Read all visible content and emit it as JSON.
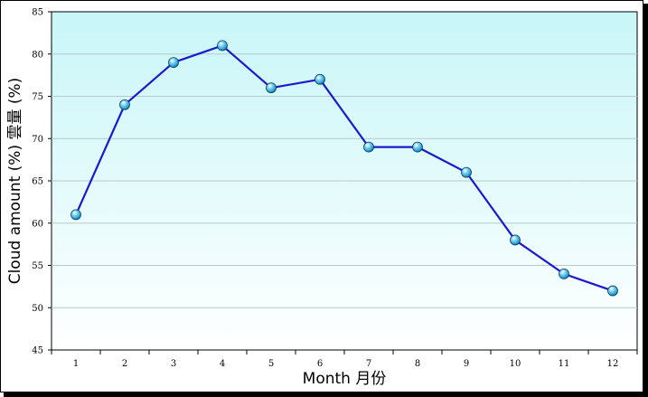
{
  "chart_data": {
    "type": "line",
    "title": "",
    "xlabel": "Month 月份",
    "ylabel": "Cloud amount (%)  雲量 (%)",
    "categories": [
      "1",
      "2",
      "3",
      "4",
      "5",
      "6",
      "7",
      "8",
      "9",
      "10",
      "11",
      "12"
    ],
    "series": [
      {
        "values": [
          61,
          74,
          79,
          81,
          76,
          77,
          69,
          69,
          66,
          58,
          54,
          52
        ]
      }
    ],
    "ylim": [
      45,
      85
    ],
    "yticks": [
      "45",
      "50",
      "55",
      "60",
      "65",
      "70",
      "75",
      "80",
      "85"
    ],
    "grid": true,
    "line_color": "#1a1acc",
    "marker_color": "#2a9fd0",
    "background_top": "#c8f6f8",
    "background_bottom": "#ffffff"
  }
}
